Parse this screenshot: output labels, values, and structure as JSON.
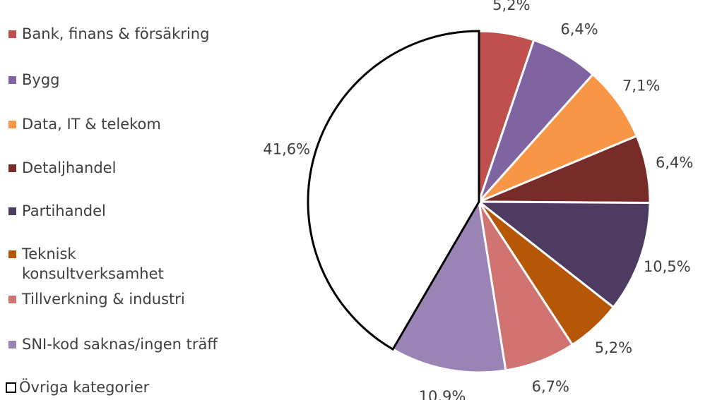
{
  "chart_data": {
    "type": "pie",
    "categories": [
      "Bank, finans & försäkring",
      "Bygg",
      "Data, IT & telekom",
      "Detaljhandel",
      "Partihandel",
      "Teknisk konsultverksamhet",
      "Tillverkning & industri",
      "SNI-kod saknas/ingen träff",
      "Övriga kategorier"
    ],
    "values": [
      5.2,
      6.4,
      7.1,
      6.4,
      10.5,
      5.2,
      6.7,
      10.9,
      41.6
    ],
    "value_labels": [
      "5,2%",
      "6,4%",
      "7,1%",
      "6,4%",
      "10,5%",
      "5,2%",
      "6,7%",
      "10,9%",
      "41,6%"
    ],
    "colors": [
      "#c0504d",
      "#8064a2",
      "#f79646",
      "#772c2a",
      "#4d3b62",
      "#b65708",
      "#d07371",
      "#9a83b5",
      "#ffffff"
    ],
    "legend": "left"
  }
}
